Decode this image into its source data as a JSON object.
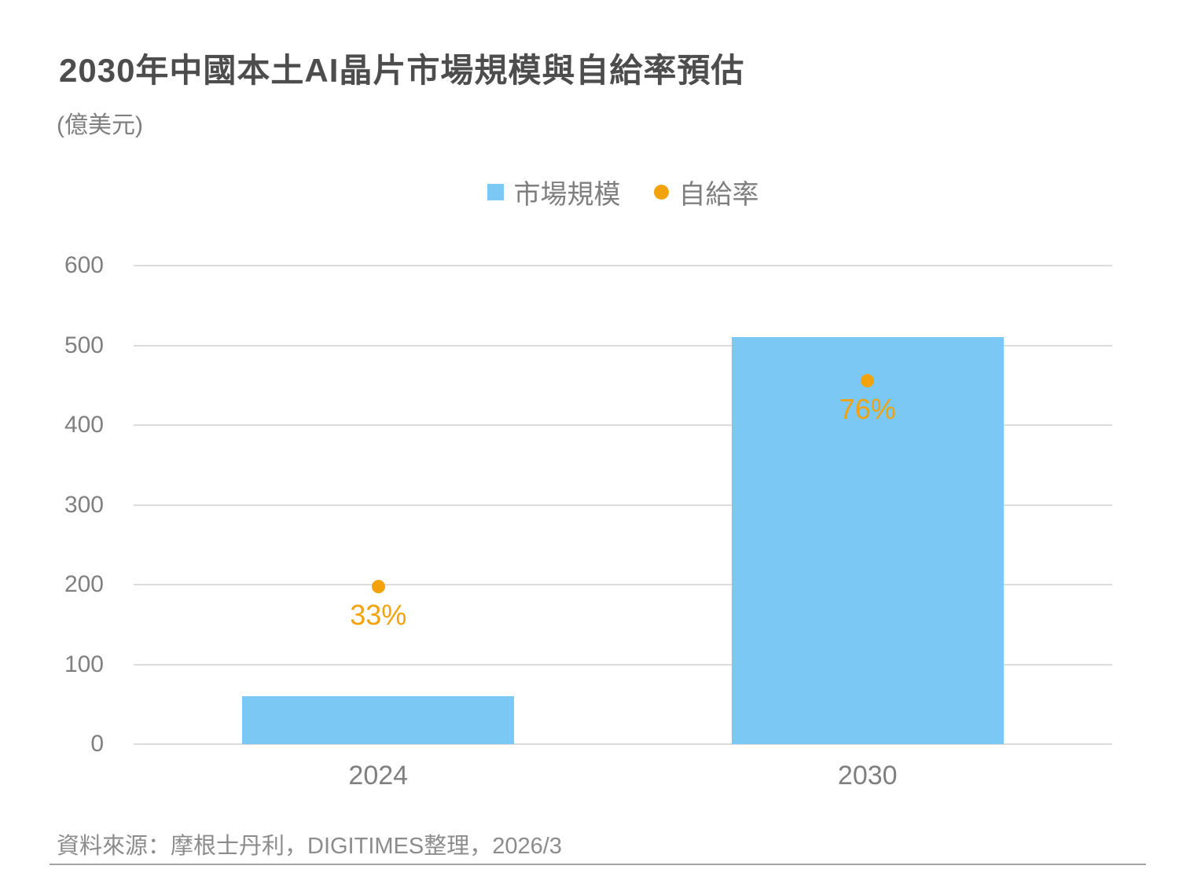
{
  "title": "2030年中國本土AI晶片市場規模與自給率預估",
  "unit_label": "(億美元)",
  "legend": {
    "items": [
      {
        "label": "市場規模",
        "marker": "square",
        "color": "#7cc8f5"
      },
      {
        "label": "自給率",
        "marker": "circle",
        "color": "#f2a30c"
      }
    ]
  },
  "source": "資料來源：摩根士丹利，DIGITIMES整理，2026/3",
  "colors": {
    "bar_blue": "#7cc8f5",
    "point_orange": "#f2a30c",
    "title_gray": "#4d4d4d",
    "label_gray": "#7f7f7f",
    "gridline_gray": "#dcdcdc"
  },
  "chart_data": {
    "type": "bar",
    "title": "2030年中國本土AI晶片市場規模與自給率預估",
    "ylabel": "(億美元)",
    "categories": [
      "2024",
      "2030"
    ],
    "series": [
      {
        "name": "市場規模",
        "type": "bar",
        "axis": "left",
        "values": [
          60,
          510
        ],
        "color": "#7cc8f5"
      },
      {
        "name": "自給率",
        "type": "point",
        "axis": "right-percent",
        "values": [
          33,
          76
        ],
        "labels": [
          "33%",
          "76%"
        ],
        "color": "#f2a30c"
      }
    ],
    "ylim": [
      0,
      600
    ],
    "yticks": [
      0,
      100,
      200,
      300,
      400,
      500,
      600
    ],
    "y2lim": [
      0,
      100
    ],
    "grid": true,
    "legend_position": "top-center",
    "source": "資料來源：摩根士丹利，DIGITIMES整理，2026/3"
  }
}
